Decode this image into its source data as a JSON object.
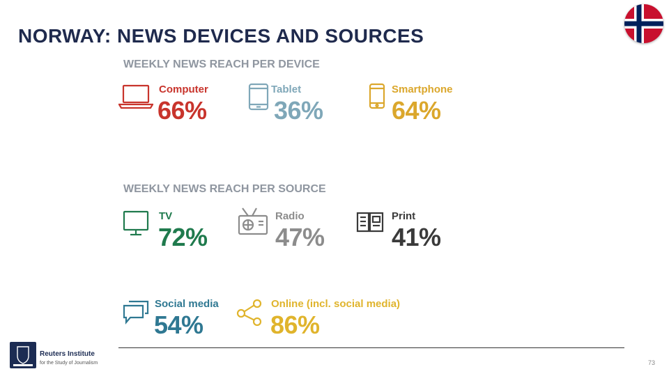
{
  "title": "NORWAY: NEWS DEVICES AND SOURCES",
  "device_heading": "WEEKLY NEWS REACH PER DEVICE",
  "source_heading": "WEEKLY NEWS REACH PER SOURCE",
  "devices": [
    {
      "label": "Computer",
      "value": "66%",
      "color": "#c8342c",
      "icon": "laptop-icon"
    },
    {
      "label": "Tablet",
      "value": "36%",
      "color": "#7fa7b8",
      "icon": "tablet-icon"
    },
    {
      "label": "Smartphone",
      "value": "64%",
      "color": "#dba72c",
      "icon": "smartphone-icon"
    }
  ],
  "sources": [
    {
      "label": "TV",
      "value": "72%",
      "color": "#1f7a4d",
      "icon": "tv-icon"
    },
    {
      "label": "Radio",
      "value": "47%",
      "color": "#8c8c8c",
      "icon": "radio-icon"
    },
    {
      "label": "Print",
      "value": "41%",
      "color": "#3a3a3a",
      "icon": "newspaper-icon"
    },
    {
      "label": "Social media",
      "value": "54%",
      "color": "#2f7892",
      "icon": "chat-icon"
    },
    {
      "label": "Online (incl. social media)",
      "value": "86%",
      "color": "#e0b42c",
      "icon": "share-icon"
    }
  ],
  "footer": {
    "logo_line1": "Reuters Institute",
    "logo_line2": "for the Study of Journalism",
    "page_number": "73"
  }
}
